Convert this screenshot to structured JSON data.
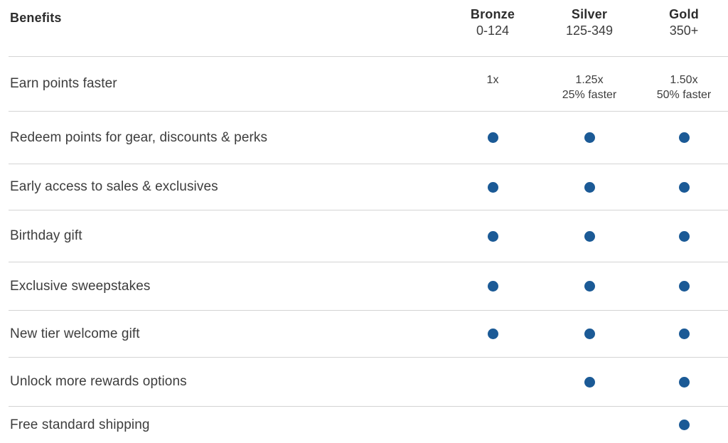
{
  "colors": {
    "page_bg": "#ffffff",
    "dot": "#1b5a96",
    "divider": "#d4d4d4",
    "heading_text": "#2d2d2d",
    "body_text": "#3d3d3d"
  },
  "table": {
    "header": {
      "benefits_label": "Benefits",
      "tiers": [
        {
          "name": "Bronze",
          "range": "0-124"
        },
        {
          "name": "Silver",
          "range": "125-349"
        },
        {
          "name": "Gold",
          "range": "350+"
        }
      ]
    },
    "rows": [
      {
        "benefit": "Earn points faster",
        "tiers": [
          {
            "lines": [
              "1x"
            ]
          },
          {
            "lines": [
              "1.25x",
              "25% faster"
            ]
          },
          {
            "lines": [
              "1.50x",
              "50% faster"
            ]
          }
        ]
      },
      {
        "benefit": "Redeem points for gear, discounts & perks",
        "tiers": [
          {
            "dot": true
          },
          {
            "dot": true
          },
          {
            "dot": true
          }
        ]
      },
      {
        "benefit": "Early access to sales & exclusives",
        "tiers": [
          {
            "dot": true
          },
          {
            "dot": true
          },
          {
            "dot": true
          }
        ]
      },
      {
        "benefit": "Birthday gift",
        "tiers": [
          {
            "dot": true
          },
          {
            "dot": true
          },
          {
            "dot": true
          }
        ]
      },
      {
        "benefit": "Exclusive sweepstakes",
        "tiers": [
          {
            "dot": true
          },
          {
            "dot": true
          },
          {
            "dot": true
          }
        ]
      },
      {
        "benefit": "New tier welcome gift",
        "tiers": [
          {
            "dot": true
          },
          {
            "dot": true
          },
          {
            "dot": true
          }
        ]
      },
      {
        "benefit": "Unlock more rewards options",
        "tiers": [
          {},
          {
            "dot": true
          },
          {
            "dot": true
          }
        ]
      },
      {
        "benefit": "Free standard shipping",
        "tiers": [
          {},
          {},
          {
            "dot": true
          }
        ]
      }
    ]
  }
}
